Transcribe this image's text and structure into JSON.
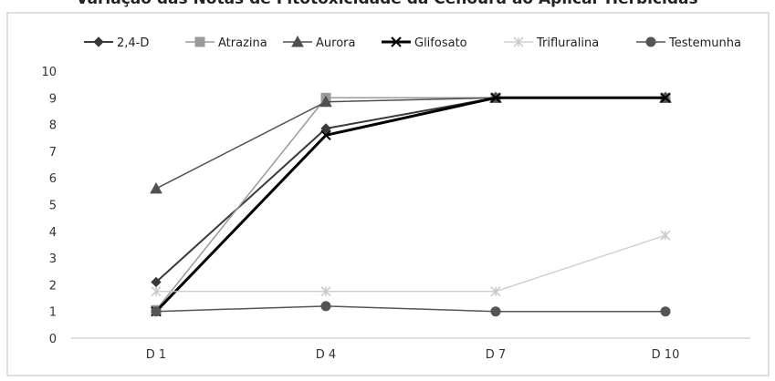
{
  "chart_data": {
    "type": "line",
    "title_partial": "Variação das Notas de Fitotoxicidade da Cenoura ao Aplicar Herbicidas",
    "categories": [
      "D 1",
      "D 4",
      "D 7",
      "D 10"
    ],
    "ylim": [
      0,
      10
    ],
    "yticks": [
      0,
      1,
      2,
      3,
      4,
      5,
      6,
      7,
      8,
      9,
      10
    ],
    "grid": false,
    "legend_position": "top",
    "series": [
      {
        "name": "2,4-D",
        "values": [
          2.1,
          7.85,
          9.0,
          9.0
        ],
        "color": "#3a3a3a",
        "marker": "diamond",
        "width": 2.0
      },
      {
        "name": "Atrazina",
        "values": [
          1.05,
          9.0,
          9.0,
          9.0
        ],
        "color": "#9a9a9a",
        "marker": "square",
        "width": 1.5
      },
      {
        "name": "Aurora",
        "values": [
          5.6,
          8.85,
          9.0,
          9.0
        ],
        "color": "#505050",
        "marker": "triangle",
        "width": 1.5
      },
      {
        "name": "Glifosato",
        "values": [
          1.0,
          7.6,
          9.0,
          9.0
        ],
        "color": "#000000",
        "marker": "x",
        "width": 3.0
      },
      {
        "name": "Trifluralina",
        "values": [
          1.75,
          1.75,
          1.75,
          3.85
        ],
        "color": "#c8c8c8",
        "marker": "star",
        "width": 1.2
      },
      {
        "name": "Testemunha",
        "values": [
          1.0,
          1.2,
          1.0,
          1.0
        ],
        "color": "#555555",
        "marker": "circle",
        "width": 1.5
      }
    ]
  }
}
